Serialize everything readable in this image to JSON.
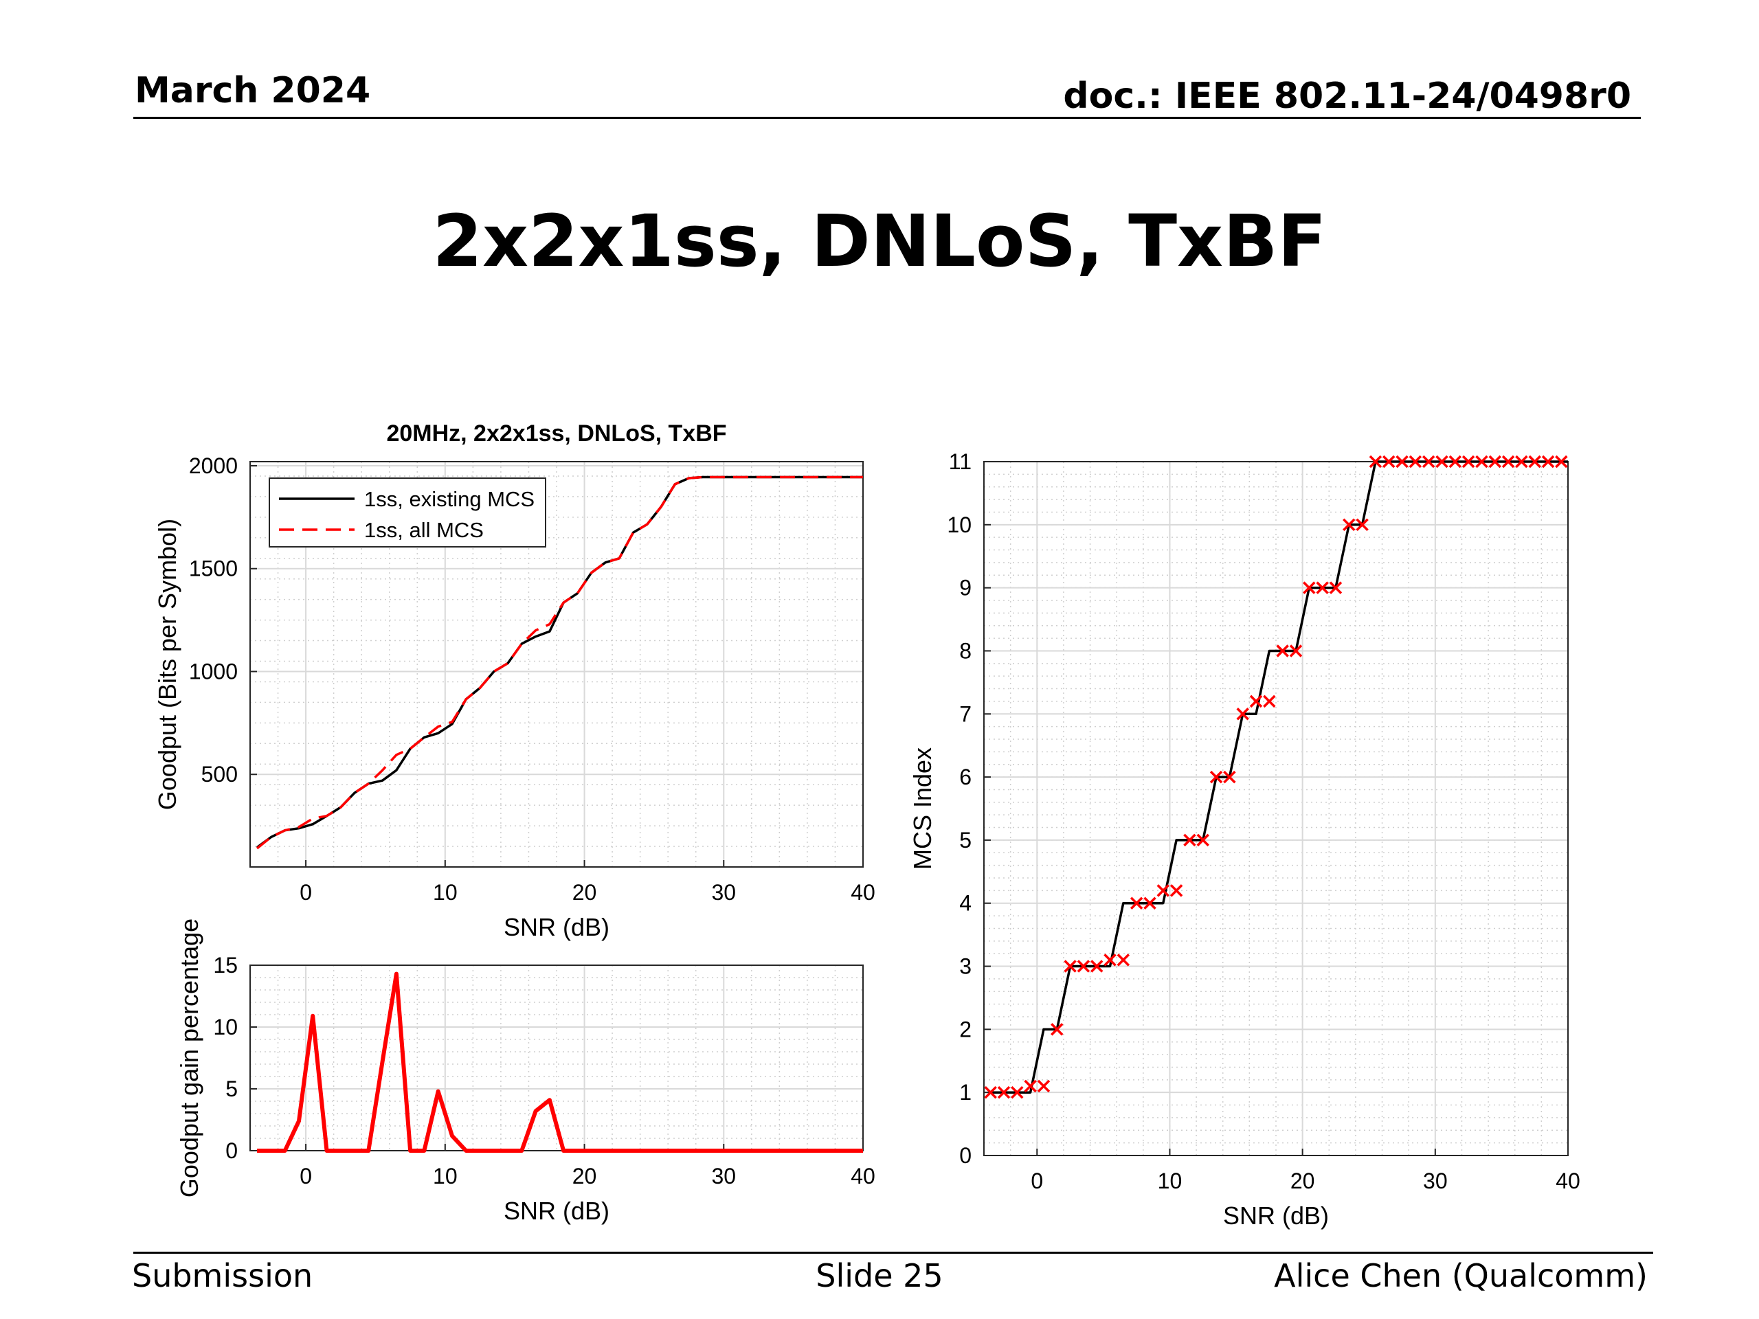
{
  "header": {
    "date": "March 2024",
    "doc": "doc.: IEEE 802.11-24/0498r0"
  },
  "slide_title": "2x2x1ss, DNLoS, TxBF",
  "footer": {
    "left": "Submission",
    "center": "Slide 25",
    "right": "Alice Chen (Qualcomm)"
  },
  "chart_data": [
    {
      "type": "line",
      "title": "20MHz, 2x2x1ss, DNLoS, TxBF",
      "xlabel": "SNR (dB)",
      "ylabel": "Goodput (Bits per Symbol)",
      "xlim": [
        -4,
        40
      ],
      "ylim": [
        50,
        2020
      ],
      "xticks": [
        0,
        10,
        20,
        30,
        40
      ],
      "yticks": [
        500,
        1000,
        1500,
        2000
      ],
      "grid": "minor-dotted",
      "legend_position": "top-left",
      "x": [
        -3.5,
        -2.5,
        -1.5,
        -0.5,
        0.5,
        1.5,
        2.5,
        3.5,
        4.5,
        5.5,
        6.5,
        7.5,
        8.5,
        9.5,
        10.5,
        11.5,
        12.5,
        13.5,
        14.5,
        15.5,
        16.5,
        17.5,
        18.5,
        19.5,
        20.5,
        21.5,
        22.5,
        23.5,
        24.5,
        25.5,
        26.5,
        27.5,
        28.5,
        29.5,
        30.5,
        31.5,
        32.5,
        33.5,
        34.5,
        35.5,
        36.5,
        37.5,
        38.5,
        39.5,
        40.5
      ],
      "series": [
        {
          "name": "1ss, existing MCS",
          "color": "#000000",
          "dash": "solid",
          "values": [
            145,
            195,
            228,
            238,
            258,
            298,
            340,
            410,
            455,
            470,
            520,
            625,
            680,
            700,
            745,
            865,
            920,
            1000,
            1040,
            1135,
            1170,
            1195,
            1335,
            1380,
            1480,
            1530,
            1550,
            1675,
            1715,
            1800,
            1910,
            1940,
            1945,
            1945,
            1945,
            1945,
            1945,
            1945,
            1945,
            1945,
            1945,
            1945,
            1945,
            1945,
            1945
          ]
        },
        {
          "name": "1ss, all MCS",
          "color": "#ff0000",
          "dash": "dashed",
          "values": [
            140,
            195,
            228,
            244,
            285,
            298,
            340,
            410,
            455,
            520,
            595,
            625,
            680,
            732,
            755,
            865,
            920,
            1000,
            1040,
            1135,
            1200,
            1230,
            1335,
            1380,
            1480,
            1530,
            1550,
            1675,
            1715,
            1800,
            1910,
            1940,
            1945,
            1945,
            1945,
            1945,
            1945,
            1945,
            1945,
            1945,
            1945,
            1945,
            1945,
            1945,
            1945
          ]
        }
      ]
    },
    {
      "type": "line",
      "title": "",
      "xlabel": "SNR (dB)",
      "ylabel": "Goodput gain percentage",
      "xlim": [
        -4,
        40
      ],
      "ylim": [
        0,
        15
      ],
      "xticks": [
        0,
        10,
        20,
        30,
        40
      ],
      "yticks": [
        0,
        5,
        10,
        15
      ],
      "grid": "minor-dotted",
      "x": [
        -3.5,
        -1.5,
        -0.5,
        0.5,
        1.5,
        2.5,
        3.5,
        4.5,
        5.5,
        6.5,
        7.5,
        8.5,
        9.5,
        10.5,
        11.5,
        15.5,
        16.5,
        17.5,
        18.5,
        40
      ],
      "series": [
        {
          "name": "",
          "color": "#ff0000",
          "dash": "solid",
          "values": [
            0,
            0,
            2.4,
            10.9,
            0,
            0,
            0,
            0,
            7.2,
            14.3,
            0,
            0,
            4.8,
            1.2,
            0,
            0,
            3.2,
            4.1,
            0,
            0
          ]
        }
      ]
    },
    {
      "type": "line",
      "title": "",
      "xlabel": "SNR (dB)",
      "ylabel": "MCS Index",
      "xlim": [
        -4,
        40
      ],
      "ylim": [
        0,
        11
      ],
      "xticks": [
        0,
        10,
        20,
        30,
        40
      ],
      "yticks": [
        0,
        1,
        2,
        3,
        4,
        5,
        6,
        7,
        8,
        9,
        10,
        11
      ],
      "grid": "minor-dotted",
      "series": [
        {
          "name": "existing MCS",
          "color": "#000000",
          "dash": "solid",
          "x": [
            -3.5,
            -0.5,
            0.5,
            1.5,
            2.5,
            3.5,
            4.5,
            5.5,
            6.5,
            7.5,
            8.5,
            9.5,
            10.5,
            11.5,
            12.5,
            13.5,
            14.5,
            15.5,
            16.5,
            17.5,
            18.5,
            19.5,
            20.5,
            21.5,
            22.5,
            23.5,
            24.5,
            25.5,
            40
          ],
          "values": [
            1,
            1,
            2,
            2,
            3,
            3,
            3,
            3,
            4,
            4,
            4,
            4,
            5,
            5,
            5,
            6,
            6,
            7,
            7,
            8,
            8,
            8,
            9,
            9,
            9,
            10,
            10,
            11,
            11
          ]
        },
        {
          "name": "all MCS",
          "color": "#ff0000",
          "marker": "x",
          "x": [
            -3.5,
            -2.5,
            -1.5,
            -0.5,
            0.5,
            1.5,
            2.5,
            3.5,
            4.5,
            5.5,
            6.5,
            7.5,
            8.5,
            9.5,
            10.5,
            11.5,
            12.5,
            13.5,
            14.5,
            15.5,
            16.5,
            17.5,
            18.5,
            19.5,
            20.5,
            21.5,
            22.5,
            23.5,
            24.5,
            25.5,
            26.5,
            27.5,
            28.5,
            29.5,
            30.5,
            31.5,
            32.5,
            33.5,
            34.5,
            35.5,
            36.5,
            37.5,
            38.5,
            39.5
          ],
          "values": [
            1,
            1,
            1,
            1.1,
            1.1,
            2,
            3,
            3,
            3,
            3.1,
            3.1,
            4,
            4,
            4.2,
            4.2,
            5,
            5,
            6,
            6,
            7,
            7.2,
            7.2,
            8,
            8,
            9,
            9,
            9,
            10,
            10,
            11,
            11,
            11,
            11,
            11,
            11,
            11,
            11,
            11,
            11,
            11,
            11,
            11,
            11,
            11
          ]
        }
      ]
    }
  ]
}
